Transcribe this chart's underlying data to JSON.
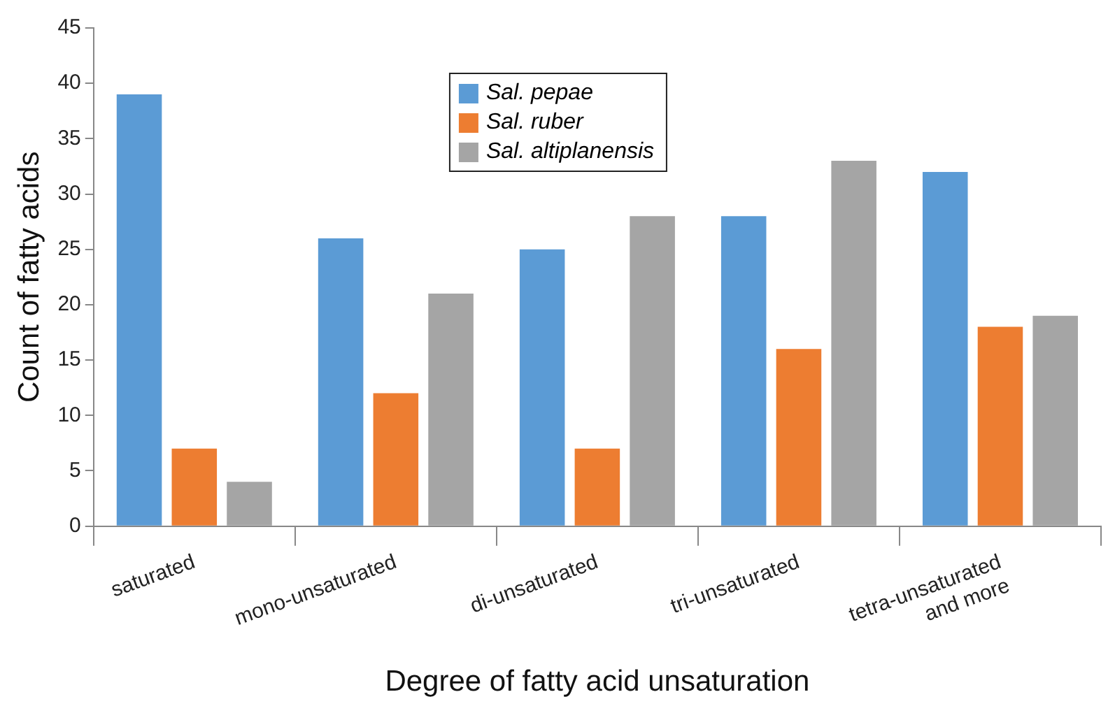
{
  "chart_data": {
    "type": "bar",
    "xlabel": "Degree of fatty acid unsaturation",
    "ylabel": "Count of fatty acids",
    "categories": [
      "saturated",
      "mono-unsaturated",
      "di-unsaturated",
      "tri-unsaturated",
      "tetra-unsaturated and more"
    ],
    "series": [
      {
        "name": "Sal. pepae",
        "color": "#5b9bd5",
        "values": [
          39,
          26,
          25,
          28,
          32
        ]
      },
      {
        "name": "Sal. ruber",
        "color": "#ed7d31",
        "values": [
          7,
          12,
          7,
          16,
          18
        ]
      },
      {
        "name": "Sal. altiplanensis",
        "color": "#a5a5a5",
        "values": [
          4,
          21,
          28,
          33,
          19
        ]
      }
    ],
    "ylim": [
      0,
      45
    ],
    "yticks": [
      0,
      5,
      10,
      15,
      20,
      25,
      30,
      35,
      40,
      45
    ],
    "grid": false,
    "legend": "top"
  }
}
